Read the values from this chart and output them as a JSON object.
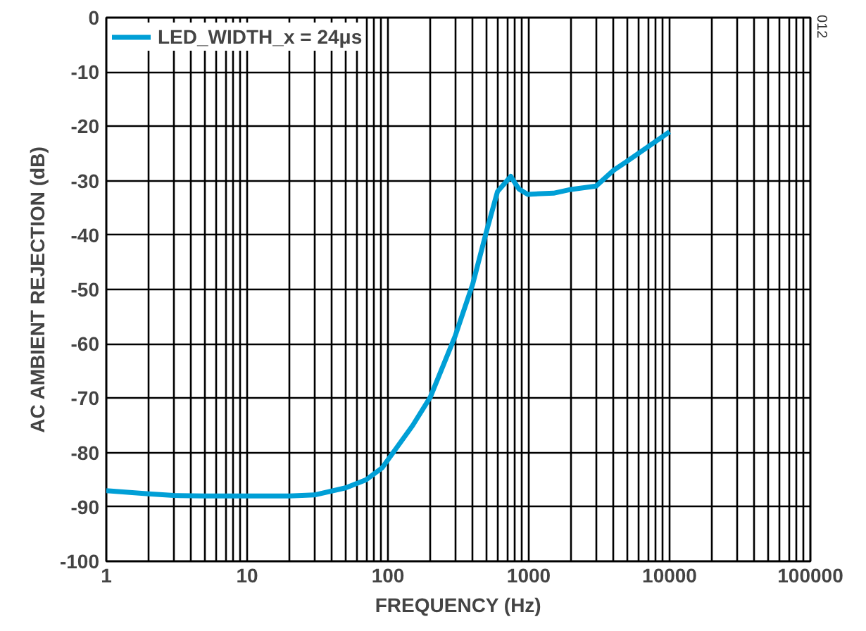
{
  "chart_data": {
    "type": "line",
    "xlabel": "FREQUENCY (Hz)",
    "ylabel": "AC AMBIENT REJECTION (dB)",
    "x": [
      1,
      2,
      3,
      5,
      10,
      20,
      30,
      50,
      70,
      91,
      150,
      200,
      300,
      400,
      500,
      600,
      745,
      850,
      980,
      1500,
      2000,
      3000,
      4000,
      5000,
      7000,
      10000
    ],
    "series": [
      {
        "name": "LED_WIDTH_x = 24μs",
        "color": "#009fd6",
        "values": [
          -87,
          -87.6,
          -87.9,
          -88,
          -88,
          -88,
          -87.8,
          -86.5,
          -85,
          -82.8,
          -75,
          -69.8,
          -58.6,
          -49,
          -39.4,
          -32,
          -29.2,
          -31.5,
          -32.5,
          -32.3,
          -31.6,
          -31,
          -28.1,
          -26.4,
          -23.8,
          -21
        ]
      }
    ],
    "log": "x",
    "xlim": [
      1,
      100000
    ],
    "ylim": [
      -100,
      0
    ],
    "xticks": [
      1,
      {
        "value": 2,
        "label": null
      },
      {
        "value": 3,
        "label": null
      },
      {
        "value": 4,
        "label": null
      },
      {
        "value": 5,
        "label": null
      },
      {
        "value": 6,
        "label": null
      },
      {
        "value": 7,
        "label": null
      },
      {
        "value": 8,
        "label": null
      },
      {
        "value": 9,
        "label": null
      },
      10,
      {
        "value": 20,
        "label": null
      },
      {
        "value": 30,
        "label": null
      },
      {
        "value": 40,
        "label": null
      },
      {
        "value": 50,
        "label": null
      },
      {
        "value": 60,
        "label": null
      },
      {
        "value": 70,
        "label": null
      },
      {
        "value": 80,
        "label": null
      },
      {
        "value": 90,
        "label": null
      },
      100,
      {
        "value": 200,
        "label": null
      },
      {
        "value": 300,
        "label": null
      },
      {
        "value": 400,
        "label": null
      },
      {
        "value": 500,
        "label": null
      },
      {
        "value": 600,
        "label": null
      },
      {
        "value": 700,
        "label": null
      },
      {
        "value": 800,
        "label": null
      },
      {
        "value": 900,
        "label": null
      },
      1000,
      {
        "value": 2000,
        "label": null
      },
      {
        "value": 3000,
        "label": null
      },
      {
        "value": 4000,
        "label": null
      },
      {
        "value": 5000,
        "label": null
      },
      {
        "value": 6000,
        "label": null
      },
      {
        "value": 7000,
        "label": null
      },
      {
        "value": 8000,
        "label": null
      },
      {
        "value": 9000,
        "label": null
      },
      10000,
      {
        "value": 20000,
        "label": null
      },
      {
        "value": 30000,
        "label": null
      },
      {
        "value": 40000,
        "label": null
      },
      {
        "value": 50000,
        "label": null
      },
      {
        "value": 60000,
        "label": null
      },
      {
        "value": 70000,
        "label": null
      },
      {
        "value": 80000,
        "label": null
      },
      {
        "value": 90000,
        "label": null
      },
      100000
    ],
    "yticks": [
      -100,
      -90,
      -80,
      -70,
      -60,
      -50,
      -40,
      -30,
      -20,
      -10,
      0
    ],
    "grid": true,
    "legend": "top left",
    "marker": "none",
    "line_style": "solid",
    "annotations": [
      "012"
    ]
  }
}
